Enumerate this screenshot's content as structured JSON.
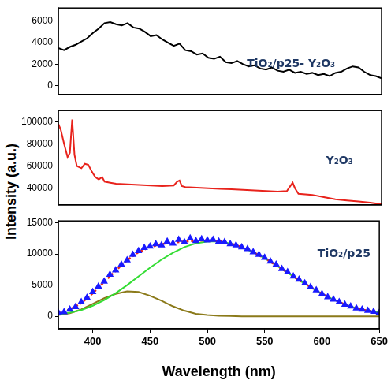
{
  "chart_data": [
    {
      "type": "line",
      "annotation": "TiO₂/p25- Y₂O₃",
      "xlim": [
        370,
        650
      ],
      "xticks": [
        400,
        450,
        500,
        550,
        600,
        650
      ],
      "ylim": [
        -800,
        7200
      ],
      "yticks": [
        0,
        2000,
        4000,
        6000
      ],
      "grid": false,
      "tick_labels": "y",
      "series": [
        {
          "color": "#000000",
          "line_style": "solid",
          "x": [
            370,
            375,
            380,
            385,
            390,
            395,
            400,
            405,
            410,
            415,
            420,
            425,
            430,
            435,
            440,
            445,
            450,
            455,
            460,
            465,
            470,
            475,
            480,
            485,
            490,
            495,
            500,
            505,
            510,
            515,
            520,
            525,
            530,
            535,
            540,
            545,
            550,
            555,
            560,
            565,
            570,
            575,
            580,
            585,
            590,
            595,
            600,
            605,
            610,
            615,
            620,
            625,
            630,
            635,
            640,
            645,
            650
          ],
          "values": [
            3500,
            3300,
            3600,
            3800,
            4100,
            4400,
            4900,
            5300,
            5800,
            5900,
            5700,
            5600,
            5800,
            5400,
            5300,
            5000,
            4600,
            4700,
            4300,
            4000,
            3700,
            3900,
            3300,
            3200,
            2900,
            3000,
            2600,
            2500,
            2700,
            2200,
            2100,
            2300,
            2000,
            1800,
            1900,
            1600,
            1500,
            1700,
            1400,
            1300,
            1500,
            1200,
            1300,
            1100,
            1200,
            1000,
            1100,
            900,
            1200,
            1300,
            1600,
            1800,
            1700,
            1300,
            1000,
            900,
            700
          ]
        }
      ]
    },
    {
      "type": "line",
      "annotation": "Y₂O₃",
      "ylabel": "Intensity (a.u.)",
      "xlim": [
        370,
        650
      ],
      "xticks": [
        400,
        450,
        500,
        550,
        600,
        650
      ],
      "ylim": [
        25000,
        110000
      ],
      "yticks": [
        40000,
        60000,
        80000,
        100000
      ],
      "grid": false,
      "tick_labels": "y",
      "series": [
        {
          "color": "#e8231c",
          "line_style": "solid",
          "x": [
            370,
            372,
            375,
            378,
            380,
            382,
            384,
            386,
            390,
            393,
            396,
            399,
            402,
            405,
            408,
            410,
            415,
            420,
            430,
            440,
            450,
            460,
            470,
            473,
            475,
            477,
            480,
            490,
            500,
            510,
            520,
            530,
            540,
            550,
            560,
            568,
            571,
            573,
            575,
            578,
            590,
            600,
            610,
            620,
            630,
            640,
            650
          ],
          "values": [
            98000,
            93000,
            80000,
            68000,
            72000,
            102000,
            70000,
            60000,
            58000,
            62000,
            61000,
            55000,
            50000,
            48000,
            50000,
            46000,
            45000,
            44000,
            43500,
            43000,
            42500,
            42000,
            42500,
            46000,
            47000,
            42000,
            41000,
            40500,
            40000,
            39500,
            39000,
            38500,
            38000,
            37500,
            37000,
            37500,
            42000,
            45000,
            40000,
            35000,
            34000,
            32000,
            30000,
            29000,
            28000,
            27000,
            25500
          ]
        }
      ]
    },
    {
      "type": "line",
      "annotation": "TiO₂/p25",
      "xlabel": "Wavelength (nm)",
      "xlim": [
        370,
        650
      ],
      "xticks": [
        400,
        450,
        500,
        550,
        600,
        650
      ],
      "ylim": [
        -2000,
        15300
      ],
      "yticks": [
        0,
        5000,
        10000,
        15000
      ],
      "grid": false,
      "tick_labels": true,
      "series": [
        {
          "color": "#1a1aff",
          "type": "scatter",
          "marker": "triangle",
          "x": [
            370,
            375,
            380,
            385,
            390,
            395,
            400,
            405,
            410,
            415,
            420,
            425,
            430,
            435,
            440,
            445,
            450,
            455,
            460,
            465,
            470,
            475,
            480,
            485,
            490,
            495,
            500,
            505,
            510,
            515,
            520,
            525,
            530,
            535,
            540,
            545,
            550,
            555,
            560,
            565,
            570,
            575,
            580,
            585,
            590,
            595,
            600,
            605,
            610,
            615,
            620,
            625,
            630,
            635,
            640,
            645,
            650
          ],
          "values": [
            600,
            700,
            1100,
            1500,
            2300,
            3000,
            3900,
            4800,
            5600,
            6700,
            7400,
            8300,
            9000,
            9900,
            10500,
            11000,
            11200,
            11600,
            11400,
            12000,
            11700,
            12300,
            11900,
            12500,
            12100,
            12400,
            12200,
            12300,
            12000,
            11900,
            11600,
            11400,
            11100,
            10800,
            10300,
            9900,
            9400,
            8800,
            8300,
            7600,
            7100,
            6400,
            5900,
            5300,
            4700,
            4200,
            3600,
            3100,
            2700,
            2300,
            1900,
            1600,
            1300,
            1100,
            900,
            750,
            600
          ]
        },
        {
          "color": "#e8231c",
          "line_style": "dotted",
          "x": [
            370,
            380,
            390,
            400,
            410,
            420,
            430,
            440,
            450,
            460,
            470,
            480,
            490,
            500,
            510,
            520,
            530,
            540,
            550,
            560,
            570,
            580,
            590,
            600,
            610,
            620,
            630,
            640,
            650
          ],
          "values": [
            500,
            1100,
            2100,
            3700,
            5500,
            7300,
            9000,
            10300,
            11100,
            11600,
            11800,
            12000,
            12100,
            12200,
            12100,
            11750,
            11100,
            10300,
            9300,
            8200,
            7000,
            5800,
            4700,
            3600,
            2700,
            1900,
            1300,
            900,
            600
          ]
        },
        {
          "color": "#33dd33",
          "line_style": "solid",
          "x": [
            370,
            380,
            390,
            400,
            410,
            420,
            430,
            440,
            450,
            460,
            470,
            480,
            490,
            500,
            510,
            520,
            530,
            540,
            550,
            560,
            570,
            580,
            590,
            600,
            610,
            620,
            630,
            640,
            650
          ],
          "values": [
            300,
            600,
            1000,
            1700,
            2600,
            3700,
            5000,
            6400,
            7800,
            9100,
            10200,
            11100,
            11700,
            12000,
            12000,
            11700,
            11100,
            10300,
            9300,
            8200,
            7000,
            5800,
            4700,
            3600,
            2700,
            1900,
            1300,
            900,
            600
          ]
        },
        {
          "color": "#8b7a1a",
          "line_style": "solid",
          "x": [
            370,
            380,
            390,
            400,
            410,
            420,
            430,
            440,
            450,
            460,
            470,
            480,
            490,
            500,
            510,
            520,
            530,
            540,
            550,
            560,
            570,
            580,
            590,
            600,
            610,
            620,
            630,
            640,
            650
          ],
          "values": [
            200,
            500,
            1100,
            2000,
            2900,
            3600,
            4000,
            3900,
            3300,
            2500,
            1600,
            900,
            400,
            200,
            100,
            50,
            0,
            0,
            0,
            0,
            0,
            0,
            0,
            0,
            0,
            0,
            0,
            0,
            0
          ]
        }
      ]
    }
  ]
}
